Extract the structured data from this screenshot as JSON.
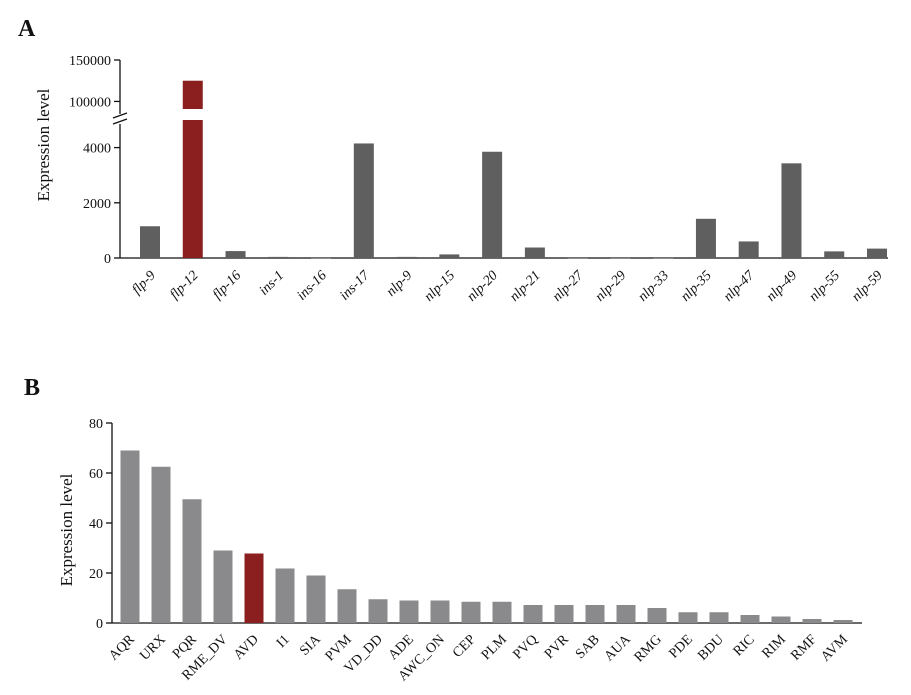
{
  "chart_data": [
    {
      "type": "bar",
      "panel": "A",
      "ylabel": "Expression level",
      "xlabel": "",
      "y_axis": "broken",
      "lower_ylim": [
        0,
        5000
      ],
      "lower_ticks": [
        0,
        2000,
        4000
      ],
      "upper_ylim": [
        80000,
        150000
      ],
      "upper_ticks": [
        100000,
        150000
      ],
      "categories": [
        "flp-9",
        "flp-12",
        "flp-16",
        "ins-1",
        "ins-16",
        "ins-17",
        "nlp-9",
        "nlp-15",
        "nlp-20",
        "nlp-21",
        "nlp-27",
        "nlp-29",
        "nlp-33",
        "nlp-35",
        "nlp-47",
        "nlp-49",
        "nlp-55",
        "nlp-59"
      ],
      "values": [
        1150,
        125000,
        250,
        40,
        5,
        4150,
        40,
        130,
        3850,
        380,
        5,
        5,
        5,
        1420,
        600,
        3430,
        240,
        340
      ],
      "highlight": "flp-12",
      "colors": {
        "bar": "#5f5f5f",
        "highlight": "#8b1f1f"
      }
    },
    {
      "type": "bar",
      "panel": "B",
      "ylabel": "Expression level",
      "xlabel": "",
      "ylim": [
        0,
        80
      ],
      "yticks": [
        0,
        20,
        40,
        60,
        80
      ],
      "categories": [
        "AQR",
        "URX",
        "PQR",
        "RME_DV",
        "AVD",
        "I1",
        "SIA",
        "PVM",
        "VD_DD",
        "ADE",
        "AWC_ON",
        "CEP",
        "PLM",
        "PVQ",
        "PVR",
        "SAB",
        "AUA",
        "RMG",
        "PDE",
        "BDU",
        "RIC",
        "RIM",
        "RMF",
        "AVM"
      ],
      "values": [
        69,
        62.5,
        49.5,
        29,
        27.8,
        21.8,
        19,
        13.5,
        9.5,
        9,
        9,
        8.5,
        8.5,
        7.2,
        7.2,
        7.2,
        7.2,
        6,
        4.3,
        4.3,
        3.2,
        2.6,
        1.6,
        1.2
      ],
      "highlight": "AVD",
      "colors": {
        "bar": "#8a8a8c",
        "highlight": "#8b1f1f"
      }
    }
  ]
}
